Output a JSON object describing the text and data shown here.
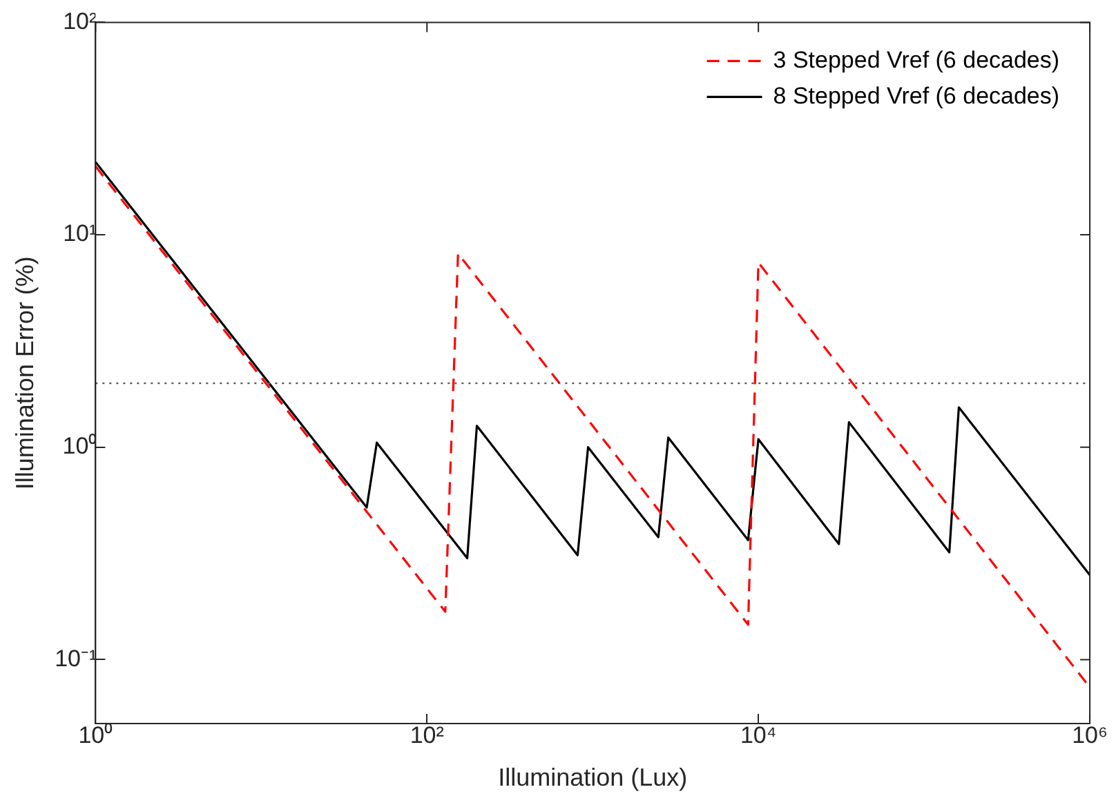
{
  "chart_data": {
    "type": "line",
    "xlabel": "Illumination (Lux)",
    "ylabel": "Illumination Error (%)",
    "log": "xy",
    "xlim": [
      1,
      1000000
    ],
    "ylim": [
      0.05,
      100
    ],
    "xticks": [
      {
        "value": 1,
        "label": "10⁰"
      },
      {
        "value": 100,
        "label": "10²"
      },
      {
        "value": 10000,
        "label": "10⁴"
      },
      {
        "value": 1000000,
        "label": "10⁶"
      }
    ],
    "yticks": [
      {
        "value": 0.1,
        "label": "10⁻¹"
      },
      {
        "value": 1,
        "label": "10⁰"
      },
      {
        "value": 10,
        "label": "10¹"
      },
      {
        "value": 100,
        "label": "10²"
      }
    ],
    "grid": false,
    "legend": "top right",
    "marker": "none",
    "series": [
      {
        "name": "3 Stepped Vref (6 decades)",
        "color": "#ff0000",
        "line_style": "dashed",
        "x": [
          1,
          129,
          154,
          8670,
          10000,
          1000000
        ],
        "values": [
          21,
          0.168,
          8.16,
          0.146,
          7.4,
          0.074
        ]
      },
      {
        "name": "8 Stepped Vref (6 decades)",
        "color": "#000000",
        "line_style": "solid",
        "x": [
          1,
          43.3,
          49.8,
          175,
          200,
          811,
          938,
          2490,
          2860,
          8670,
          10000,
          30600,
          35200,
          142000,
          162000,
          1000000
        ],
        "values": [
          22,
          0.52,
          1.05,
          0.3,
          1.26,
          0.31,
          1.0,
          0.377,
          1.11,
          0.365,
          1.09,
          0.35,
          1.31,
          0.32,
          1.54,
          0.25
        ]
      }
    ],
    "ref_lines": [
      {
        "axis": "y",
        "value": 2,
        "color": "#555555",
        "line_style": "dotted"
      }
    ]
  }
}
